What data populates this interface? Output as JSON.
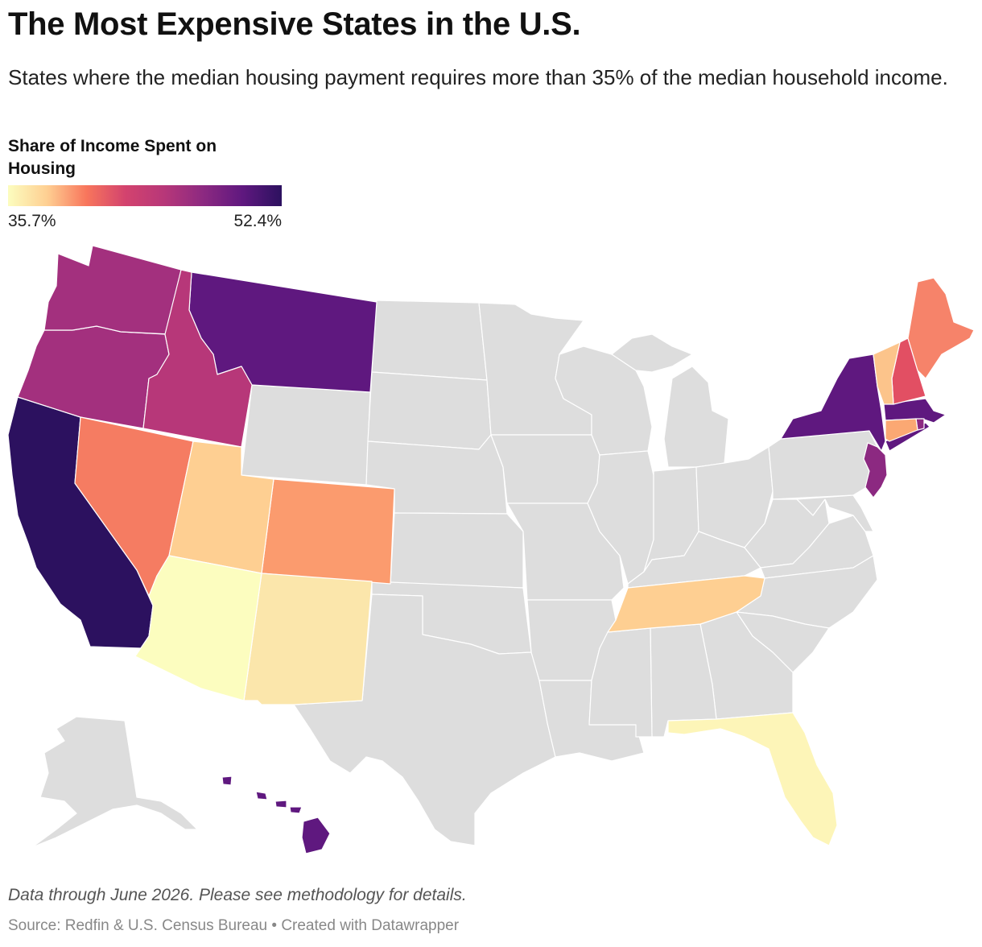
{
  "title": "The Most Expensive States in the U.S.",
  "subtitle": "States where the median housing payment requires more than 35% of the median household income.",
  "legend": {
    "title": "Share of Income Spent on Housing",
    "min_label": "35.7%",
    "max_label": "52.4%",
    "stops": [
      "#fcfdbf",
      "#fecf92",
      "#f8765c",
      "#d3436e",
      "#b73779",
      "#8c2981",
      "#5f187f",
      "#2c115f"
    ]
  },
  "notes": "Data through June 2026. Please see methodology for details.",
  "source": "Source: Redfin & U.S. Census Bureau • Created with Datawrapper",
  "colors": {
    "no_data": "#dddddd",
    "border": "#ffffff"
  },
  "chart_data": {
    "type": "choropleth",
    "metric": "Share of Income Spent on Housing",
    "unit": "%",
    "range": [
      35.7,
      52.4
    ],
    "highlighted_states": [
      {
        "state": "California",
        "color": "#2c115f"
      },
      {
        "state": "Hawaii",
        "color": "#5f187f"
      },
      {
        "state": "Montana",
        "color": "#5f187f"
      },
      {
        "state": "New York",
        "color": "#5f187f"
      },
      {
        "state": "Massachusetts",
        "color": "#5f187f"
      },
      {
        "state": "New Jersey",
        "color": "#8c2981"
      },
      {
        "state": "Rhode Island",
        "color": "#8c2981"
      },
      {
        "state": "Oregon",
        "color": "#a3307e"
      },
      {
        "state": "Washington",
        "color": "#a3307e"
      },
      {
        "state": "Idaho",
        "color": "#b73779"
      },
      {
        "state": "New Hampshire",
        "color": "#e24f63"
      },
      {
        "state": "Nevada",
        "color": "#f57c62"
      },
      {
        "state": "Maine",
        "color": "#f6836a"
      },
      {
        "state": "Colorado",
        "color": "#fb9b6e"
      },
      {
        "state": "Connecticut",
        "color": "#fba873"
      },
      {
        "state": "Vermont",
        "color": "#fcc48b"
      },
      {
        "state": "Tennessee",
        "color": "#fecf92"
      },
      {
        "state": "Utah",
        "color": "#fecf92"
      },
      {
        "state": "New Mexico",
        "color": "#fbe6ab"
      },
      {
        "state": "Florida",
        "color": "#fdf5b8"
      },
      {
        "state": "Arizona",
        "color": "#fcfdbf"
      }
    ]
  }
}
